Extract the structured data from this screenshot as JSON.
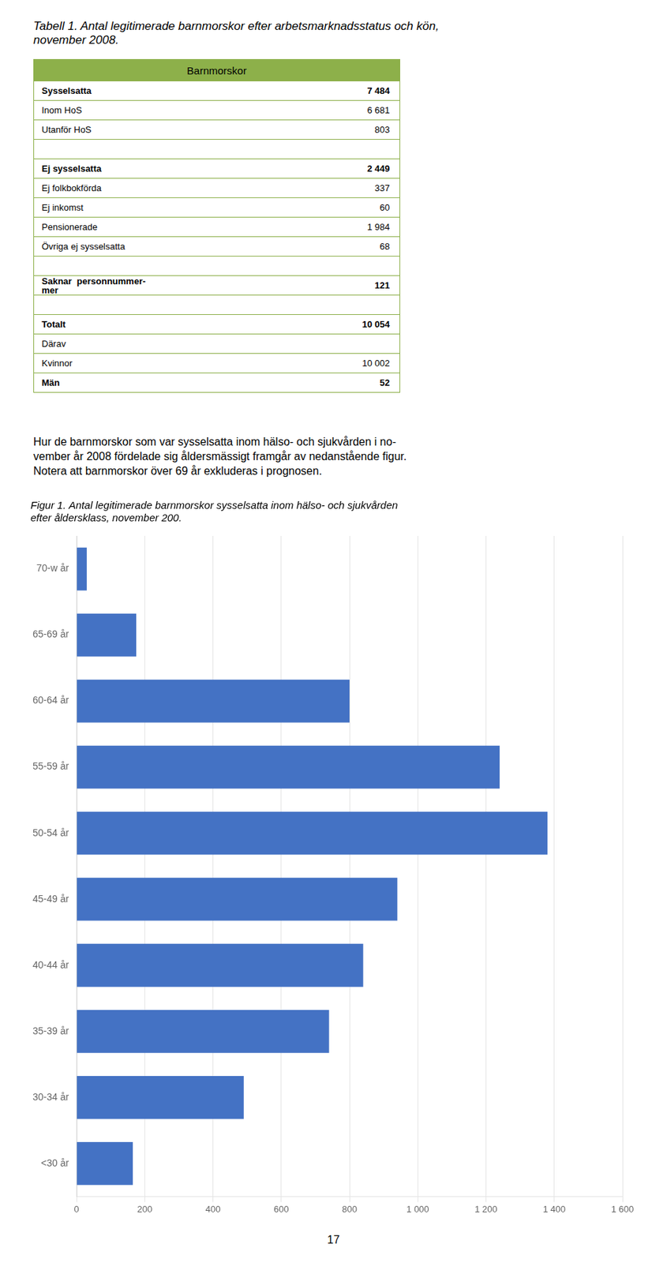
{
  "title": [
    "Tabell 1. Antal legitimerade barnmorskor efter arbetsmarknadsstatus och kön,",
    "november 2008."
  ],
  "table": {
    "header": "Barnmorskor",
    "header_color": "#8DB04A",
    "border_color": "#8DB04A",
    "rows": [
      {
        "label": "Sysselsatta",
        "value": "7 484",
        "bold": true
      },
      {
        "label": "Inom HoS",
        "value": "6 681",
        "bold": false
      },
      {
        "label": "Utanför HoS",
        "value": "803",
        "bold": false
      },
      {
        "label": null,
        "value": null,
        "bold": false
      },
      {
        "label": "Ej sysselsatta",
        "value": "2 449",
        "bold": true
      },
      {
        "label": "Ej folkbokförda",
        "value": "337",
        "bold": false
      },
      {
        "label": "Ej inkomst",
        "value": "60",
        "bold": false
      },
      {
        "label": "Pensionerade",
        "value": "1 984",
        "bold": false
      },
      {
        "label": "Övriga ej sysselsatta",
        "value": "68",
        "bold": false
      },
      {
        "label": null,
        "value": null,
        "bold": false
      },
      {
        "label": "Saknar  personnummer-\nmer",
        "value": "121",
        "bold": true
      },
      {
        "label": null,
        "value": null,
        "bold": false
      },
      {
        "label": "Totalt",
        "value": "10 054",
        "bold": true
      },
      {
        "label": "Därav",
        "value": null,
        "bold": false
      },
      {
        "label": "Kvinnor",
        "value": "10 002",
        "bold": false
      },
      {
        "label": "Män",
        "value": "52",
        "bold": true
      }
    ]
  },
  "paragraph": [
    "Hur de barnmorskor som var sysselsatta inom hälso- och sjukvården i no-",
    "vember år 2008 fördelade sig åldersmässigt framgår av nedanstående figur.",
    "Notera att barnmorskor över 69 år exkluderas i prognosen."
  ],
  "chart_data": {
    "type": "bar",
    "orientation": "horizontal",
    "title": [
      "Figur 1. Antal legitimerade barnmorskor sysselsatta inom hälso- och sjukvården",
      "efter åldersklass, november 200."
    ],
    "categories": [
      "70-w år",
      "65-69 år",
      "60-64 år",
      "55-59 år",
      "50-54 år",
      "45-49 år",
      "40-44 år",
      "35-39 år",
      "30-34 år",
      "<30 år"
    ],
    "values": [
      30,
      175,
      800,
      1240,
      1380,
      940,
      840,
      740,
      490,
      165
    ],
    "color": "#4472C4",
    "xlim": [
      0,
      1600
    ],
    "xticks": [
      0,
      200,
      400,
      600,
      800,
      {
        "value": 1000,
        "label": "1 000"
      },
      {
        "value": 1200,
        "label": "1 200"
      },
      {
        "value": 1400,
        "label": "1 400"
      },
      {
        "value": 1600,
        "label": "1 600"
      }
    ],
    "grid": true
  },
  "page_number": "17"
}
